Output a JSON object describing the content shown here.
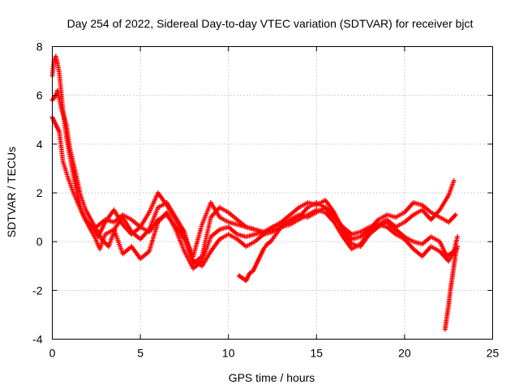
{
  "chart_data": {
    "type": "scatter",
    "title": "Day 254 of 2022, Sidereal Day-to-day VTEC variation (SDTVAR) for receiver bjct",
    "xlabel": "GPS time / hours",
    "ylabel": "SDTVAR / TECUs",
    "xlim": [
      0,
      25
    ],
    "ylim": [
      -4,
      8
    ],
    "xticks": [
      "0",
      "5",
      "10",
      "15",
      "20",
      "25"
    ],
    "yticks": [
      "-4",
      "-2",
      "0",
      "2",
      "4",
      "6",
      "8"
    ],
    "grid": true,
    "marker": "+",
    "color": "#ff0000",
    "series": [
      {
        "name": "track-1",
        "x": [
          0.0,
          0.1,
          0.2,
          0.3,
          0.4,
          0.6,
          0.8,
          1.0,
          1.2,
          1.4,
          1.7,
          2.0,
          2.3,
          2.6,
          3.0,
          3.5,
          4.0,
          4.5,
          5.0,
          5.5,
          6.0,
          6.5,
          7.0,
          7.5,
          8.0,
          8.5,
          9.0,
          9.5,
          10.0,
          10.5,
          11.0,
          11.5,
          12.0,
          12.5,
          13.0,
          13.5,
          14.0,
          14.5,
          15.0,
          15.5,
          16.0,
          16.5,
          17.0,
          17.5,
          18.0,
          18.5,
          19.0,
          19.5,
          20.0,
          20.5,
          21.0,
          21.5,
          22.0,
          22.5,
          22.8
        ],
        "y": [
          6.8,
          7.4,
          7.6,
          7.3,
          6.9,
          5.4,
          4.3,
          3.5,
          2.7,
          2.0,
          1.2,
          0.8,
          0.6,
          0.2,
          0.8,
          1.3,
          0.7,
          0.3,
          0.6,
          1.2,
          2.0,
          1.5,
          0.9,
          0.2,
          -0.6,
          0.7,
          1.6,
          1.0,
          0.8,
          0.7,
          0.6,
          0.5,
          0.4,
          0.6,
          0.7,
          0.9,
          1.1,
          1.0,
          1.2,
          1.4,
          1.0,
          0.6,
          0.3,
          0.4,
          0.6,
          0.7,
          0.9,
          0.6,
          0.8,
          1.1,
          1.3,
          0.9,
          1.3,
          1.9,
          2.5
        ]
      },
      {
        "name": "track-2",
        "x": [
          0.0,
          0.1,
          0.2,
          0.3,
          0.5,
          0.8,
          1.0,
          1.3,
          1.6,
          1.9,
          2.2,
          2.5,
          2.8,
          3.2,
          3.6,
          4.0,
          4.5,
          5.0,
          5.5,
          6.0,
          6.5,
          7.0,
          7.5,
          8.0,
          8.5,
          9.0,
          9.5,
          10.0,
          10.5,
          11.0,
          11.5,
          12.0,
          12.5,
          13.0,
          13.5,
          14.0,
          14.5,
          15.0,
          15.5,
          16.0,
          16.5,
          17.0,
          17.5,
          18.0,
          18.5,
          19.0,
          19.5,
          20.0,
          20.5,
          21.0,
          21.5,
          22.0,
          22.5,
          22.9
        ],
        "y": [
          5.8,
          5.9,
          6.0,
          6.2,
          5.5,
          4.8,
          3.8,
          2.9,
          1.9,
          1.3,
          0.9,
          0.5,
          0.1,
          -0.2,
          0.6,
          1.0,
          0.4,
          0.1,
          0.5,
          1.4,
          1.6,
          1.0,
          0.4,
          -0.9,
          -0.6,
          1.0,
          1.4,
          1.2,
          0.9,
          0.6,
          0.5,
          0.3,
          0.6,
          0.8,
          1.1,
          1.4,
          1.6,
          1.5,
          1.7,
          1.2,
          0.5,
          0.1,
          0.2,
          0.5,
          0.9,
          1.1,
          1.0,
          1.2,
          1.6,
          1.5,
          1.2,
          1.0,
          0.8,
          1.1
        ]
      },
      {
        "name": "track-3",
        "x": [
          0.0,
          0.2,
          0.4,
          0.6,
          0.9,
          1.2,
          1.5,
          1.8,
          2.1,
          2.4,
          2.7,
          3.0,
          3.5,
          4.0,
          4.5,
          5.0,
          5.5,
          6.0,
          6.5,
          7.0,
          7.5,
          8.0,
          8.5,
          9.0,
          9.5,
          10.0,
          10.5,
          11.0,
          11.5,
          12.0,
          12.5,
          13.0,
          13.5,
          14.0,
          14.5,
          15.0,
          15.5,
          16.0,
          16.5,
          17.0,
          17.5,
          18.0,
          18.5,
          19.0,
          19.5,
          20.0,
          20.5,
          21.0,
          21.5,
          22.0,
          22.4,
          22.8,
          23.0
        ],
        "y": [
          5.1,
          4.8,
          4.5,
          3.3,
          2.6,
          2.0,
          1.5,
          1.0,
          0.6,
          0.2,
          -0.3,
          0.3,
          0.5,
          -0.5,
          -0.2,
          -0.7,
          -0.4,
          0.8,
          1.2,
          0.5,
          -0.4,
          -1.1,
          -0.8,
          0.2,
          0.5,
          0.6,
          0.3,
          0.2,
          0.3,
          0.4,
          0.5,
          0.6,
          0.8,
          1.0,
          1.4,
          1.6,
          1.4,
          1.1,
          0.4,
          -0.1,
          -0.2,
          0.3,
          0.6,
          0.8,
          0.5,
          0.2,
          0.0,
          -0.1,
          0.2,
          0.0,
          -0.6,
          -0.4,
          0.2
        ]
      },
      {
        "name": "track-4",
        "x": [
          2.5,
          3.0,
          3.5,
          4.0,
          4.5,
          5.0,
          5.5,
          6.0,
          6.5,
          7.0,
          7.5,
          8.0,
          8.5,
          9.0,
          9.5,
          10.0,
          10.5,
          11.0,
          11.5,
          12.0,
          12.5,
          13.0,
          13.5,
          14.0,
          14.5,
          15.0,
          15.5,
          16.0,
          16.5,
          17.0,
          17.5,
          18.0,
          18.5,
          19.0,
          19.5,
          20.0,
          20.5,
          21.0,
          21.5,
          22.0,
          22.5,
          22.9
        ],
        "y": [
          0.6,
          0.9,
          0.8,
          1.1,
          0.9,
          0.6,
          0.4,
          0.9,
          1.1,
          0.6,
          0.1,
          -0.8,
          -1.0,
          -0.4,
          0.1,
          0.3,
          0.1,
          -0.2,
          0.0,
          0.3,
          0.4,
          0.6,
          0.7,
          0.9,
          1.1,
          1.3,
          1.2,
          0.8,
          0.2,
          -0.3,
          -0.1,
          0.4,
          0.7,
          0.6,
          0.3,
          0.1,
          -0.3,
          -0.6,
          -0.2,
          -0.4,
          -0.8,
          -0.3
        ]
      },
      {
        "name": "track-5",
        "x": [
          10.6,
          10.8,
          11.0,
          11.2,
          11.4,
          11.6,
          11.8,
          12.0,
          12.2,
          12.4,
          12.6,
          12.8,
          13.0,
          13.2
        ],
        "y": [
          -1.4,
          -1.5,
          -1.6,
          -1.3,
          -1.2,
          -0.9,
          -0.6,
          -0.3,
          -0.1,
          0.0,
          0.2,
          0.4,
          0.6,
          0.7
        ]
      },
      {
        "name": "track-6",
        "x": [
          22.3,
          22.4,
          22.5,
          22.6,
          22.7,
          22.8,
          22.9,
          23.0
        ],
        "y": [
          -3.6,
          -3.1,
          -2.6,
          -2.0,
          -1.5,
          -1.0,
          -0.5,
          -0.2
        ]
      }
    ]
  }
}
